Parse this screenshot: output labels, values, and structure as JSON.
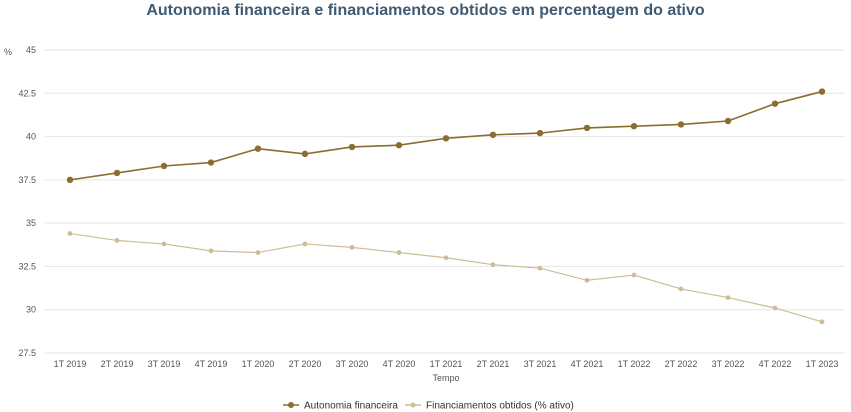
{
  "chart_data": {
    "type": "line",
    "title": "Autonomia financeira e financiamentos obtidos em percentagem do ativo",
    "xlabel": "Tempo",
    "ylabel": "%",
    "ylim": [
      27.5,
      45
    ],
    "yticks": [
      27.5,
      30,
      32.5,
      35,
      37.5,
      40,
      42.5,
      45
    ],
    "ytick_labels": [
      "27.5",
      "30",
      "32.5",
      "35",
      "37.5",
      "40",
      "42.5",
      "45"
    ],
    "categories": [
      "1T 2019",
      "2T 2019",
      "3T 2019",
      "4T 2019",
      "1T 2020",
      "2T 2020",
      "3T 2020",
      "4T 2020",
      "1T 2021",
      "2T 2021",
      "3T 2021",
      "4T 2021",
      "1T 2022",
      "2T 2022",
      "3T 2022",
      "4T 2022",
      "1T 2023"
    ],
    "grid": true,
    "legend_position": "bottom",
    "series": [
      {
        "name": "Autonomia financeira",
        "color": "#8b6d2f",
        "values": [
          37.5,
          37.9,
          38.3,
          38.5,
          39.3,
          39.0,
          39.4,
          39.5,
          39.9,
          40.1,
          40.2,
          40.5,
          40.6,
          40.7,
          40.9,
          41.9,
          42.6
        ]
      },
      {
        "name": "Financiamentos obtidos (% ativo)",
        "color": "#cbbd95",
        "values": [
          34.4,
          34.0,
          33.8,
          33.4,
          33.3,
          33.8,
          33.6,
          33.3,
          33.0,
          32.6,
          32.4,
          31.7,
          32.0,
          31.2,
          30.7,
          30.1,
          29.3
        ]
      }
    ]
  }
}
